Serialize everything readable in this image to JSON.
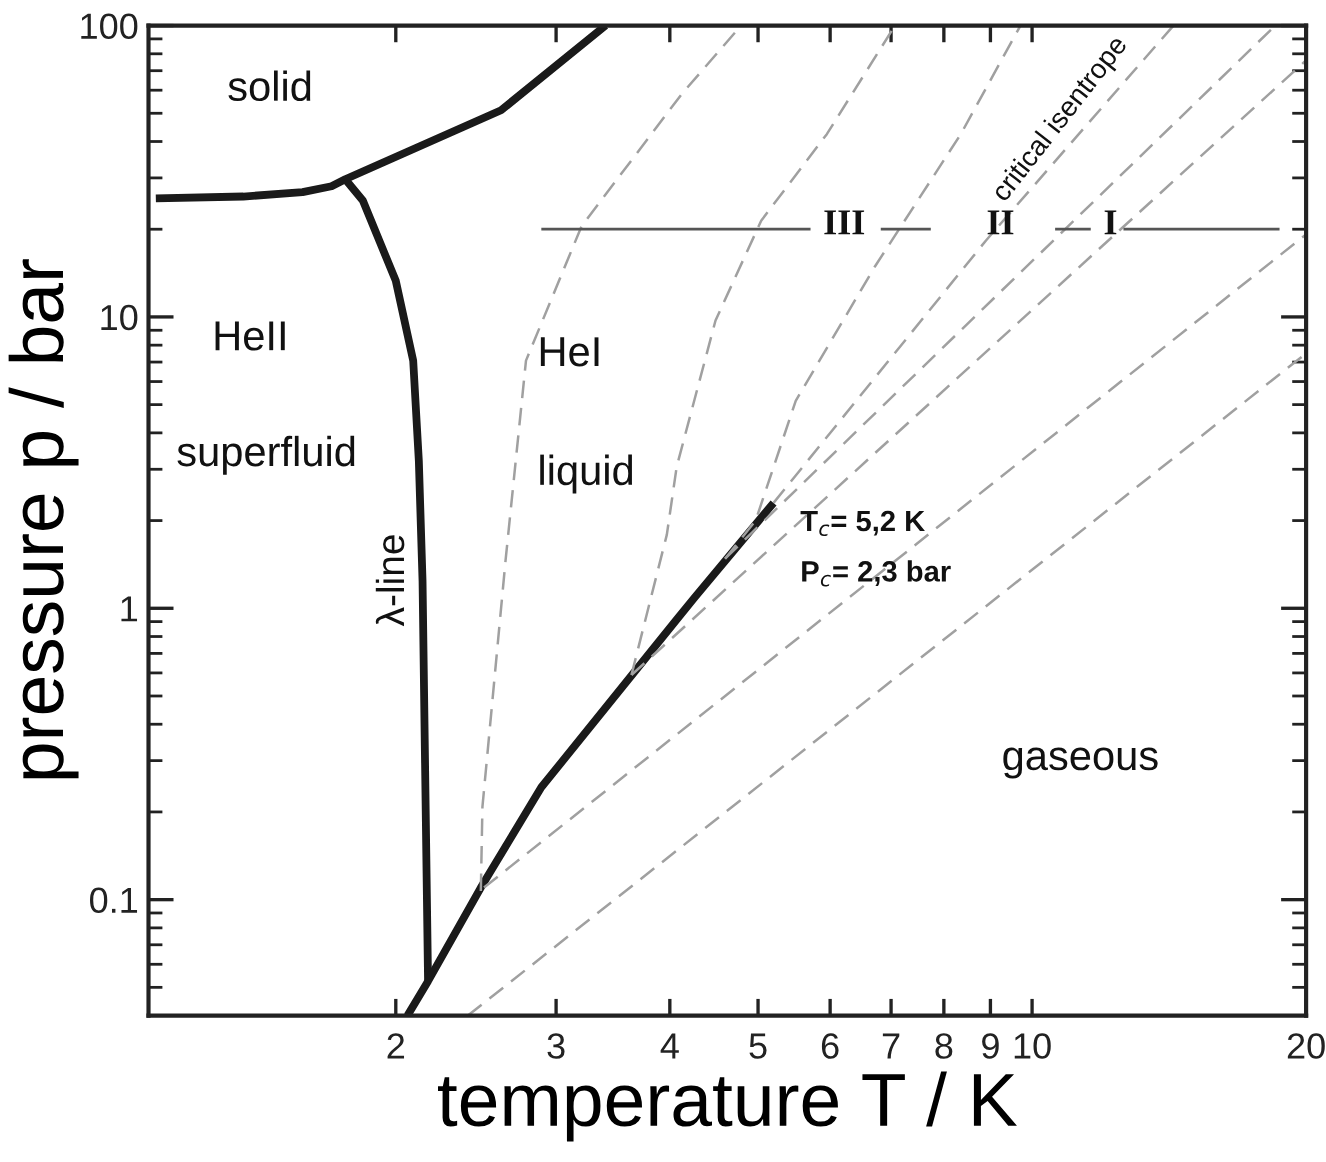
{
  "chart_data": {
    "type": "line",
    "xlabel": "temperature T / K",
    "ylabel": "pressure p / bar",
    "log": "xy",
    "grid": false,
    "marker": "none",
    "xlim": [
      1.07,
      20
    ],
    "ylim": [
      0.04,
      100
    ],
    "xticks": [
      2,
      3,
      4,
      5,
      6,
      7,
      8,
      9,
      10,
      20
    ],
    "yticks": [
      {
        "value": 0.04,
        "label": null
      },
      {
        "value": 0.05,
        "label": null
      },
      {
        "value": 0.06,
        "label": null
      },
      {
        "value": 0.07,
        "label": null
      },
      {
        "value": 0.08,
        "label": null
      },
      {
        "value": 0.09,
        "label": null
      },
      0.1,
      {
        "value": 0.2,
        "label": null
      },
      {
        "value": 0.3,
        "label": null
      },
      {
        "value": 0.4,
        "label": null
      },
      {
        "value": 0.5,
        "label": null
      },
      {
        "value": 0.6,
        "label": null
      },
      {
        "value": 0.7,
        "label": null
      },
      {
        "value": 0.8,
        "label": null
      },
      {
        "value": 0.9,
        "label": null
      },
      1,
      {
        "value": 2,
        "label": null
      },
      {
        "value": 3,
        "label": null
      },
      {
        "value": 4,
        "label": null
      },
      {
        "value": 5,
        "label": null
      },
      {
        "value": 6,
        "label": null
      },
      {
        "value": 7,
        "label": null
      },
      {
        "value": 8,
        "label": null
      },
      {
        "value": 9,
        "label": null
      },
      10,
      {
        "value": 20,
        "label": null
      },
      {
        "value": 30,
        "label": null
      },
      {
        "value": 40,
        "label": null
      },
      {
        "value": 50,
        "label": null
      },
      {
        "value": 60,
        "label": null
      },
      {
        "value": 70,
        "label": null
      },
      {
        "value": 80,
        "label": null
      },
      {
        "value": 90,
        "label": null
      },
      100
    ],
    "series": [
      {
        "color": "#1a1a1a",
        "line_style": "solid",
        "x": [
          1.09,
          1.36,
          1.58,
          1.7,
          1.76,
          2.61,
          3.4
        ],
        "values": [
          25.5,
          25.9,
          26.8,
          28.1,
          29.7,
          51.2,
          100
        ]
      },
      {
        "color": "#1a1a1a",
        "line_style": "solid",
        "x": [
          1.76,
          1.84,
          2.0,
          2.09,
          2.12,
          2.14,
          2.17
        ],
        "values": [
          29.7,
          25.1,
          13.3,
          7.08,
          3.21,
          1.24,
          0.0525
        ]
      },
      {
        "color": "#1a1a1a",
        "line_style": "solid",
        "x": [
          2.06,
          2.17,
          2.48,
          2.89,
          4.06,
          4.26,
          5.2
        ],
        "values": [
          0.04,
          0.0525,
          0.11,
          0.243,
          0.906,
          1.09,
          2.3
        ]
      },
      {
        "color": "#a0a0a0",
        "line_style": "dashed",
        "x": [
          2.48,
          2.49,
          2.64,
          2.78,
          3.2,
          4.12,
          4.79
        ],
        "values": [
          0.107,
          0.208,
          1.46,
          7.08,
          20.5,
          58.1,
          100
        ]
      },
      {
        "color": "#a0a0a0",
        "line_style": "dashed",
        "x": [
          3.63,
          3.97,
          4.07,
          4.49,
          5.04,
          5.95,
          7.07
        ],
        "values": [
          0.59,
          1.79,
          3.06,
          9.72,
          21.4,
          42.4,
          100
        ]
      },
      {
        "color": "#a0a0a0",
        "line_style": "dashed",
        "x": [
          4.6,
          4.97,
          5.5,
          6.72,
          8.35,
          9.71
        ],
        "values": [
          1.48,
          2.0,
          5.15,
          14.9,
          42.4,
          100
        ]
      },
      {
        "color": "#a0a0a0",
        "line_style": "dashed",
        "x": [
          5.2,
          8.9,
          14.3
        ],
        "values": [
          2.3,
          18.3,
          100
        ]
      },
      {
        "color": "#a0a0a0",
        "line_style": "dashed",
        "x": [
          4.6,
          18.5
        ],
        "values": [
          1.48,
          100
        ]
      },
      {
        "color": "#a0a0a0",
        "line_style": "dashed",
        "x": [
          3.63,
          20
        ],
        "values": [
          0.59,
          76
        ]
      },
      {
        "color": "#a0a0a0",
        "line_style": "dashed",
        "x": [
          2.5,
          20
        ],
        "values": [
          0.11,
          19.2
        ]
      },
      {
        "color": "#a0a0a0",
        "line_style": "dashed",
        "x": [
          2.4,
          20
        ],
        "values": [
          0.04,
          7.5
        ]
      },
      {
        "color": "#555555",
        "line_style": "solid",
        "x": [
          2.89,
          5.71,
          6.0,
          6.82,
          7.74,
          9.0,
          10.6,
          11.6,
          12.0,
          12.6,
          18.7
        ],
        "values": [
          20,
          20,
          null,
          20,
          20,
          null,
          20,
          20,
          null,
          20,
          20
        ]
      }
    ],
    "annotations": [
      "solid",
      "HeII",
      "superfluid",
      "λ-line",
      "HeI",
      "liquid",
      "critical isentrope",
      "T$_{c}$= 5,2 K",
      "P$_{c}$= 2,3 bar",
      "gaseous",
      "III",
      "II",
      "I"
    ]
  }
}
